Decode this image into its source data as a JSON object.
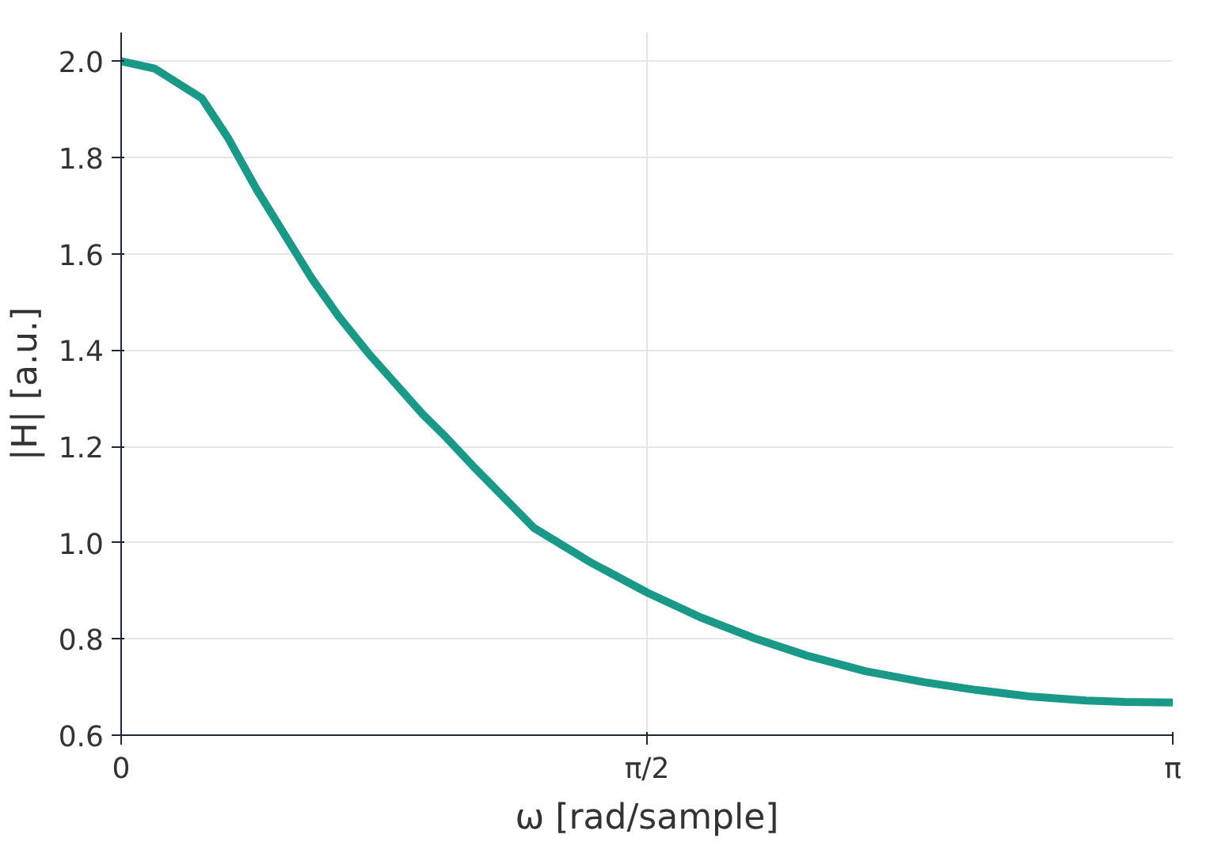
{
  "chart_data": {
    "type": "line",
    "xlabel": "ω [rad/sample]",
    "ylabel": "|H| [a.u.]",
    "x": [
      0,
      0.1,
      0.2413,
      0.32,
      0.4063,
      0.5713,
      0.65,
      0.7368,
      0.9018,
      0.9677,
      1.05,
      1.2323,
      1.4,
      1.5723,
      1.73,
      1.8929,
      2.05,
      2.2234,
      2.4,
      2.5535,
      2.72,
      2.8835,
      3.0,
      3.1416
    ],
    "series": [
      {
        "color": "#1a9988",
        "values": [
          2.0,
          1.985,
          1.923,
          1.84,
          1.732,
          1.547,
          1.47,
          1.395,
          1.266,
          1.221,
          1.16,
          1.031,
          0.96,
          0.896,
          0.845,
          0.801,
          0.765,
          0.733,
          0.71,
          0.694,
          0.68,
          0.672,
          0.669,
          0.668
        ]
      }
    ],
    "xlim": [
      0,
      3.1416
    ],
    "ylim": [
      0.6,
      2.06
    ],
    "xticks": [
      0,
      {
        "value": 1.5708,
        "label": "π/2"
      },
      {
        "value": 3.1416,
        "label": "π"
      }
    ],
    "yticks": [
      {
        "value": 0.6,
        "label": "0.6"
      },
      {
        "value": 0.8,
        "label": "0.8"
      },
      {
        "value": 1.0,
        "label": "1.0"
      },
      {
        "value": 1.2,
        "label": "1.2"
      },
      {
        "value": 1.4,
        "label": "1.4"
      },
      {
        "value": 1.6,
        "label": "1.6"
      },
      {
        "value": 1.8,
        "label": "1.8"
      },
      {
        "value": 2.0,
        "label": "2.0"
      }
    ],
    "grid": true,
    "marker": "none",
    "line_style": "solid"
  }
}
